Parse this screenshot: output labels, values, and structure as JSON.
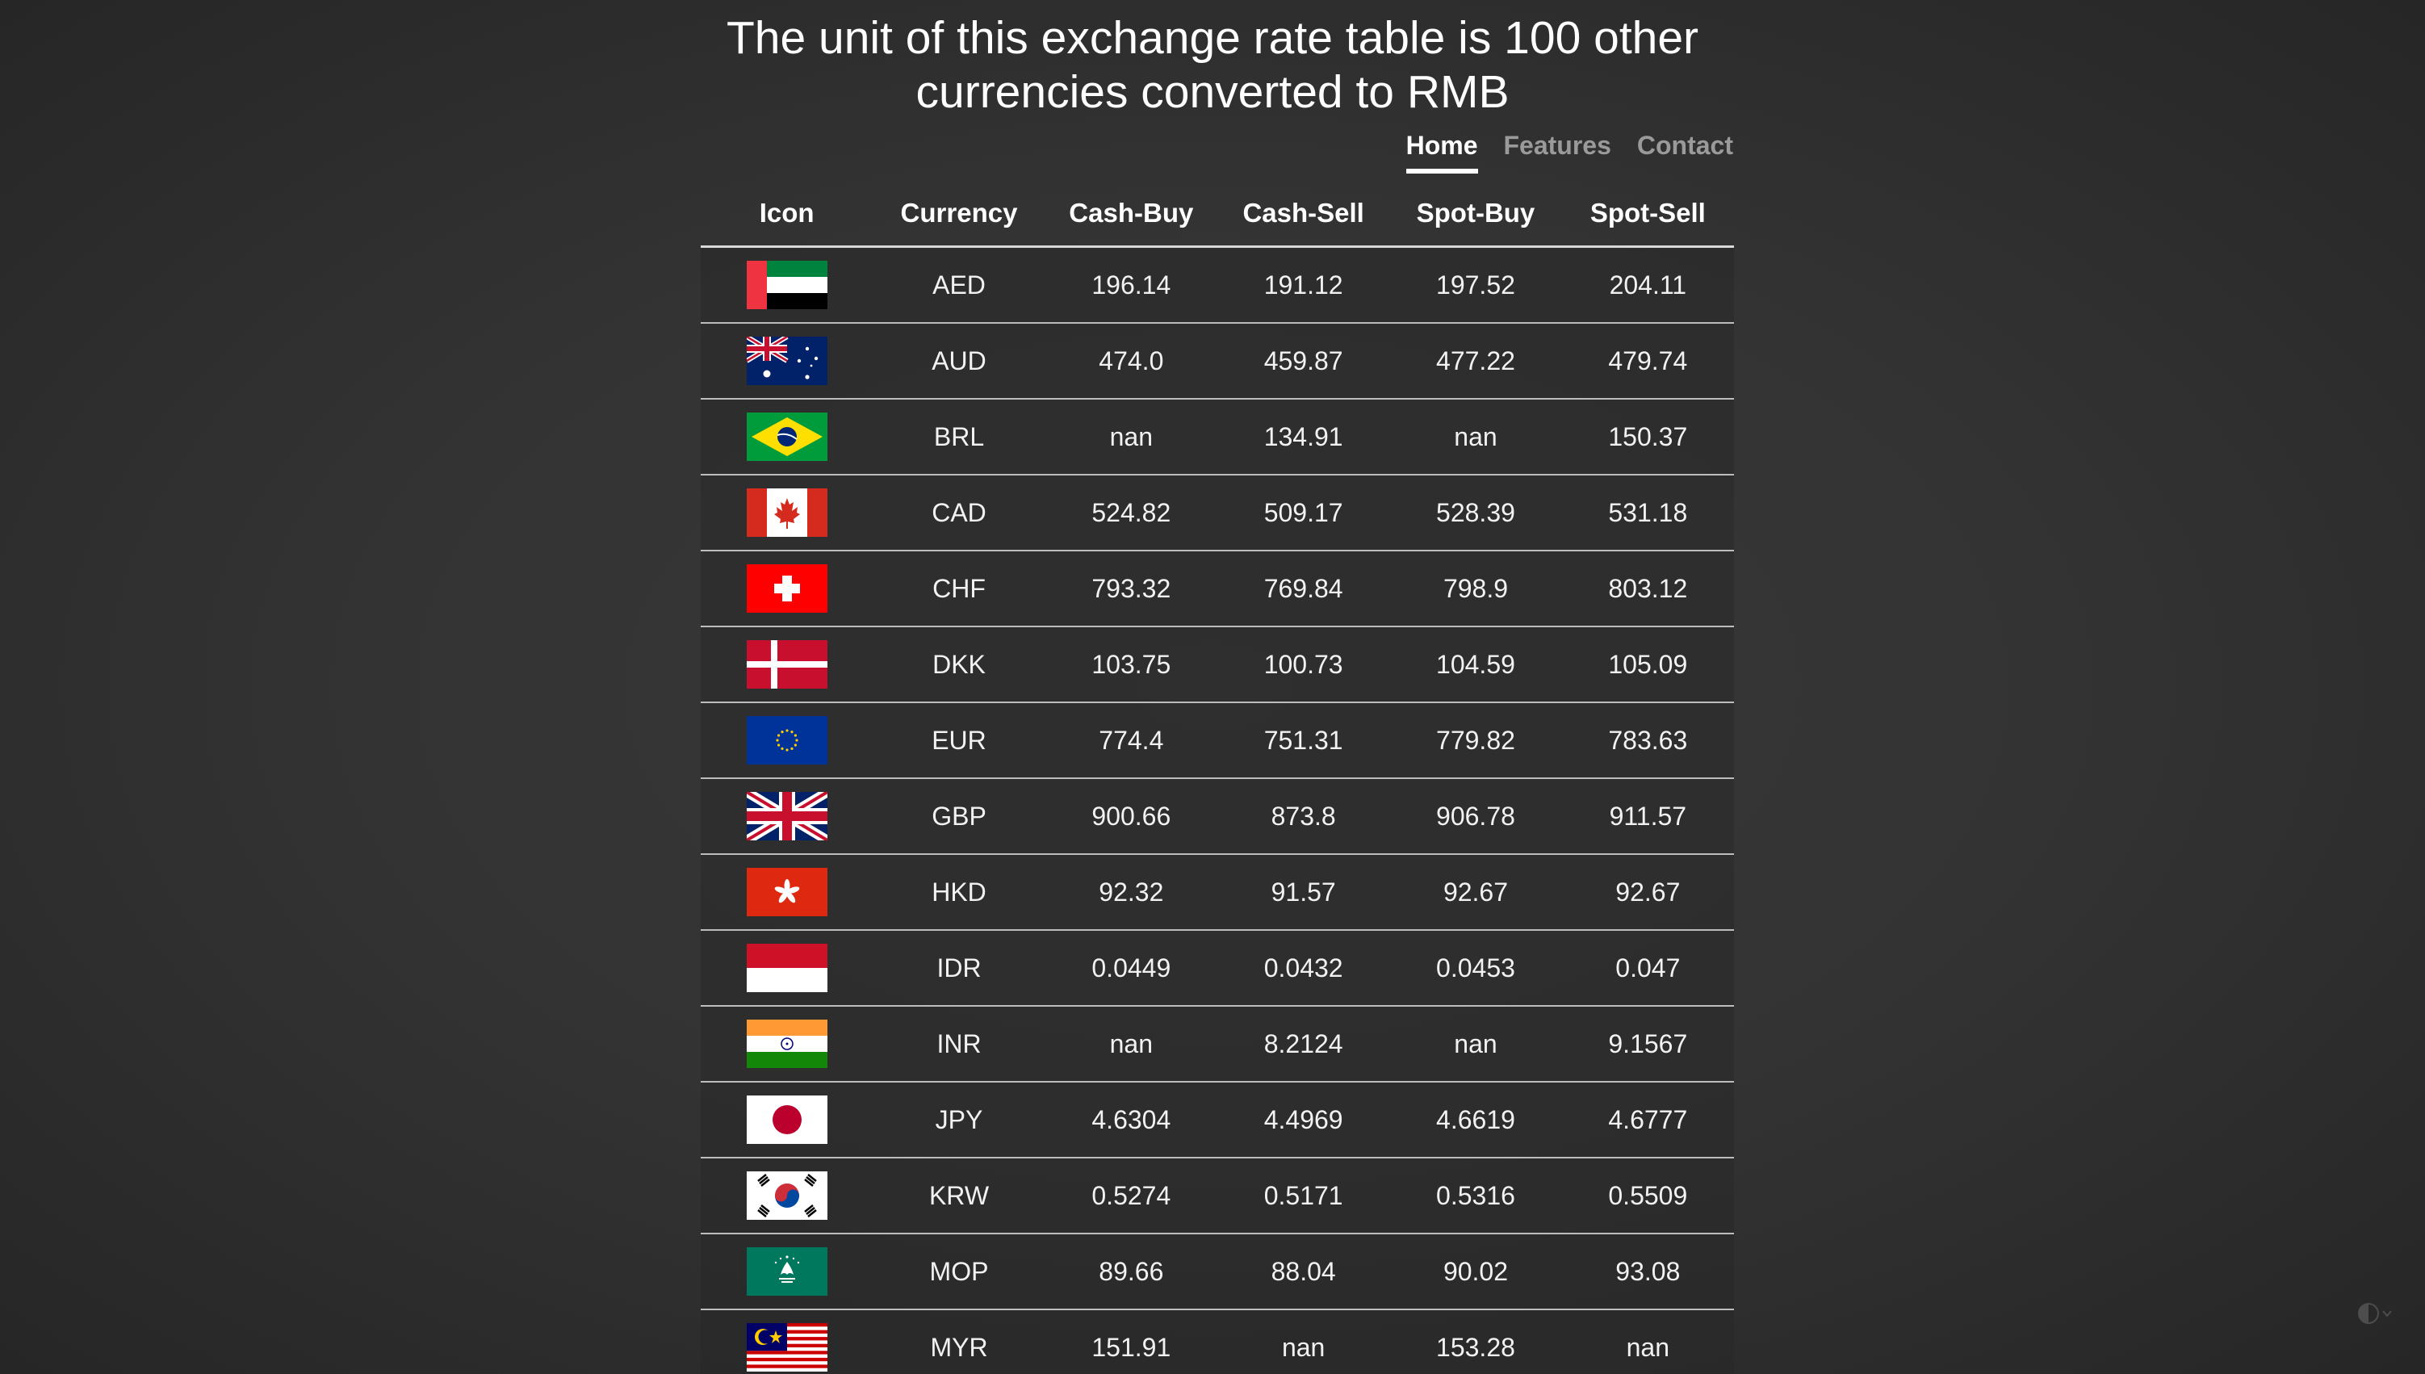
{
  "header": {
    "title_line1": "The unit of this exchange rate table is 100 other",
    "title_line2": "currencies converted to RMB"
  },
  "nav": {
    "home": "Home",
    "features": "Features",
    "contact": "Contact"
  },
  "table": {
    "columns": [
      "Icon",
      "Currency",
      "Cash-Buy",
      "Cash-Sell",
      "Spot-Buy",
      "Spot-Sell"
    ],
    "rows": [
      {
        "flag": "uae-flag-icon",
        "currency": "AED",
        "cash_buy": "196.14",
        "cash_sell": "191.12",
        "spot_buy": "197.52",
        "spot_sell": "204.11"
      },
      {
        "flag": "australia-flag-icon",
        "currency": "AUD",
        "cash_buy": "474.0",
        "cash_sell": "459.87",
        "spot_buy": "477.22",
        "spot_sell": "479.74"
      },
      {
        "flag": "brazil-flag-icon",
        "currency": "BRL",
        "cash_buy": "nan",
        "cash_sell": "134.91",
        "spot_buy": "nan",
        "spot_sell": "150.37"
      },
      {
        "flag": "canada-flag-icon",
        "currency": "CAD",
        "cash_buy": "524.82",
        "cash_sell": "509.17",
        "spot_buy": "528.39",
        "spot_sell": "531.18"
      },
      {
        "flag": "switzerland-flag-icon",
        "currency": "CHF",
        "cash_buy": "793.32",
        "cash_sell": "769.84",
        "spot_buy": "798.9",
        "spot_sell": "803.12"
      },
      {
        "flag": "denmark-flag-icon",
        "currency": "DKK",
        "cash_buy": "103.75",
        "cash_sell": "100.73",
        "spot_buy": "104.59",
        "spot_sell": "105.09"
      },
      {
        "flag": "eu-flag-icon",
        "currency": "EUR",
        "cash_buy": "774.4",
        "cash_sell": "751.31",
        "spot_buy": "779.82",
        "spot_sell": "783.63"
      },
      {
        "flag": "uk-flag-icon",
        "currency": "GBP",
        "cash_buy": "900.66",
        "cash_sell": "873.8",
        "spot_buy": "906.78",
        "spot_sell": "911.57"
      },
      {
        "flag": "hongkong-flag-icon",
        "currency": "HKD",
        "cash_buy": "92.32",
        "cash_sell": "91.57",
        "spot_buy": "92.67",
        "spot_sell": "92.67"
      },
      {
        "flag": "indonesia-flag-icon",
        "currency": "IDR",
        "cash_buy": "0.0449",
        "cash_sell": "0.0432",
        "spot_buy": "0.0453",
        "spot_sell": "0.047"
      },
      {
        "flag": "india-flag-icon",
        "currency": "INR",
        "cash_buy": "nan",
        "cash_sell": "8.2124",
        "spot_buy": "nan",
        "spot_sell": "9.1567"
      },
      {
        "flag": "japan-flag-icon",
        "currency": "JPY",
        "cash_buy": "4.6304",
        "cash_sell": "4.4969",
        "spot_buy": "4.6619",
        "spot_sell": "4.6777"
      },
      {
        "flag": "korea-flag-icon",
        "currency": "KRW",
        "cash_buy": "0.5274",
        "cash_sell": "0.5171",
        "spot_buy": "0.5316",
        "spot_sell": "0.5509"
      },
      {
        "flag": "macau-flag-icon",
        "currency": "MOP",
        "cash_buy": "89.66",
        "cash_sell": "88.04",
        "spot_buy": "90.02",
        "spot_sell": "93.08"
      },
      {
        "flag": "malaysia-flag-icon",
        "currency": "MYR",
        "cash_buy": "151.91",
        "cash_sell": "nan",
        "spot_buy": "153.28",
        "spot_sell": "nan"
      }
    ]
  },
  "theme_toggle_icon": "contrast-icon"
}
